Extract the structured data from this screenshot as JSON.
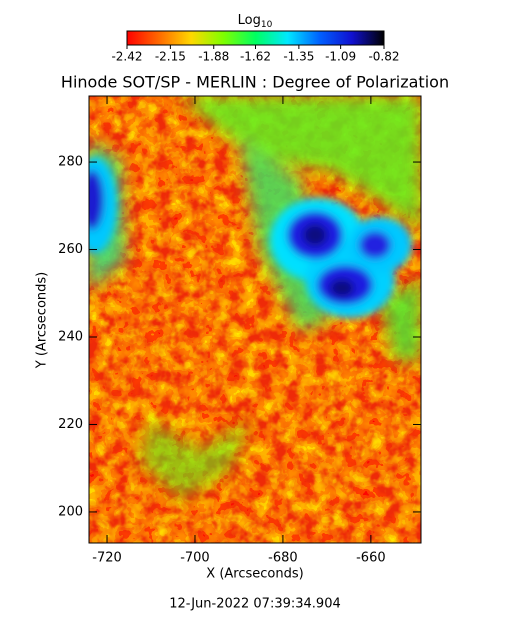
{
  "chart_data": {
    "type": "image",
    "title": "Hinode SOT/SP - MERLIN : Degree of Polarization",
    "x_label": "X (Arcseconds)",
    "y_label": "Y (Arcseconds)",
    "xlim": [
      -724.1,
      -648.6
    ],
    "xticks": [
      -720,
      -700,
      -680,
      -660
    ],
    "ylim": [
      192.9,
      295.1
    ],
    "yticks": [
      200,
      220,
      240,
      260,
      280
    ],
    "colorbar": {
      "label": "Log",
      "label_sub": "10",
      "lim": [
        -2.42,
        -0.82
      ],
      "ticks": [
        -2.42,
        -2.15,
        -1.88,
        -1.62,
        -1.35,
        -1.09,
        -0.82
      ],
      "colors": [
        "#ff0000",
        "#ff6a00",
        "#ffd800",
        "#7fff00",
        "#00ff60",
        "#00e8ff",
        "#0060ff",
        "#1010d0",
        "#000000"
      ]
    },
    "timestamp": "12-Jun-2022 07:39:34.904"
  }
}
